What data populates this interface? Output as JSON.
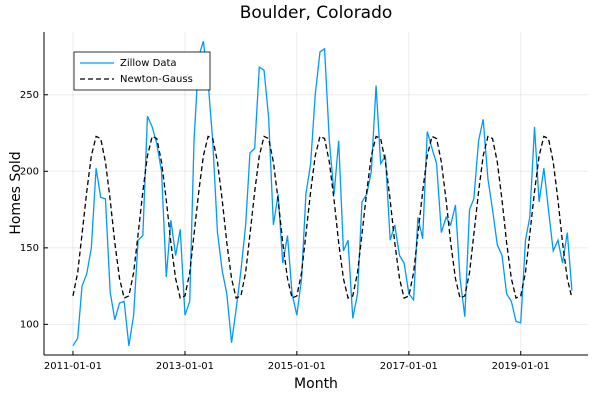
{
  "chart_data": {
    "type": "line",
    "title": "Boulder, Colorado",
    "x_label": "Month",
    "y_label": "Homes Sold",
    "x": [
      "2011-01-01",
      "2011-02-01",
      "2011-03-01",
      "2011-04-01",
      "2011-05-01",
      "2011-06-01",
      "2011-07-01",
      "2011-08-01",
      "2011-09-01",
      "2011-10-01",
      "2011-11-01",
      "2011-12-01",
      "2012-01-01",
      "2012-02-01",
      "2012-03-01",
      "2012-04-01",
      "2012-05-01",
      "2012-06-01",
      "2012-07-01",
      "2012-08-01",
      "2012-09-01",
      "2012-10-01",
      "2012-11-01",
      "2012-12-01",
      "2013-01-01",
      "2013-02-01",
      "2013-03-01",
      "2013-04-01",
      "2013-05-01",
      "2013-06-01",
      "2013-07-01",
      "2013-08-01",
      "2013-09-01",
      "2013-10-01",
      "2013-11-01",
      "2013-12-01",
      "2014-01-01",
      "2014-02-01",
      "2014-03-01",
      "2014-04-01",
      "2014-05-01",
      "2014-06-01",
      "2014-07-01",
      "2014-08-01",
      "2014-09-01",
      "2014-10-01",
      "2014-11-01",
      "2014-12-01",
      "2015-01-01",
      "2015-02-01",
      "2015-03-01",
      "2015-04-01",
      "2015-05-01",
      "2015-06-01",
      "2015-07-01",
      "2015-08-01",
      "2015-09-01",
      "2015-10-01",
      "2015-11-01",
      "2015-12-01",
      "2016-01-01",
      "2016-02-01",
      "2016-03-01",
      "2016-04-01",
      "2016-05-01",
      "2016-06-01",
      "2016-07-01",
      "2016-08-01",
      "2016-09-01",
      "2016-10-01",
      "2016-11-01",
      "2016-12-01",
      "2017-01-01",
      "2017-02-01",
      "2017-03-01",
      "2017-04-01",
      "2017-05-01",
      "2017-06-01",
      "2017-07-01",
      "2017-08-01",
      "2017-09-01",
      "2017-10-01",
      "2017-11-01",
      "2017-12-01",
      "2018-01-01",
      "2018-02-01",
      "2018-03-01",
      "2018-04-01",
      "2018-05-01",
      "2018-06-01",
      "2018-07-01",
      "2018-08-01",
      "2018-09-01",
      "2018-10-01",
      "2018-11-01",
      "2018-12-01",
      "2019-01-01",
      "2019-02-01",
      "2019-03-01",
      "2019-04-01",
      "2019-05-01",
      "2019-06-01",
      "2019-07-01",
      "2019-08-01",
      "2019-09-01",
      "2019-10-01",
      "2019-11-01",
      "2019-12-01"
    ],
    "series": [
      {
        "name": "Zillow Data",
        "color": "#009af9",
        "dash": false,
        "values": [
          86,
          91,
          125,
          133,
          150,
          202,
          183,
          182,
          121,
          103,
          114,
          115,
          86,
          106,
          155,
          158,
          236,
          229,
          218,
          200,
          131,
          168,
          145,
          162,
          106,
          115,
          220,
          275,
          285,
          258,
          220,
          160,
          135,
          120,
          88,
          110,
          135,
          165,
          212,
          215,
          268,
          266,
          235,
          165,
          185,
          140,
          158,
          120,
          106,
          130,
          185,
          205,
          250,
          278,
          280,
          220,
          185,
          220,
          148,
          155,
          104,
          120,
          180,
          185,
          200,
          256,
          205,
          210,
          155,
          165,
          145,
          140,
          120,
          116,
          170,
          156,
          226,
          215,
          205,
          160,
          170,
          165,
          178,
          130,
          105,
          175,
          182,
          220,
          234,
          195,
          175,
          152,
          145,
          120,
          115,
          102,
          101,
          155,
          170,
          229,
          180,
          202,
          175,
          148,
          155,
          140,
          160,
          122
        ]
      },
      {
        "name": "Newton-Gauss",
        "color": "#000000",
        "dash": true,
        "values": [
          118.6,
          133.9,
          158.8,
          186.7,
          210.1,
          222.8,
          221.4,
          206.1,
          181.2,
          153.3,
          129.9,
          117.2,
          118.6,
          133.9,
          158.8,
          186.7,
          210.1,
          222.8,
          221.4,
          206.1,
          181.2,
          153.3,
          129.9,
          117.2,
          118.6,
          133.9,
          158.8,
          186.7,
          210.1,
          222.8,
          221.4,
          206.1,
          181.2,
          153.3,
          129.9,
          117.2,
          118.6,
          133.9,
          158.8,
          186.7,
          210.1,
          222.8,
          221.4,
          206.1,
          181.2,
          153.3,
          129.9,
          117.2,
          118.6,
          133.9,
          158.8,
          186.7,
          210.1,
          222.8,
          221.4,
          206.1,
          181.2,
          153.3,
          129.9,
          117.2,
          118.6,
          133.9,
          158.8,
          186.7,
          210.1,
          222.8,
          221.4,
          206.1,
          181.2,
          153.3,
          129.9,
          117.2,
          118.6,
          133.9,
          158.8,
          186.7,
          210.1,
          222.8,
          221.4,
          206.1,
          181.2,
          153.3,
          129.9,
          117.2,
          118.6,
          133.9,
          158.8,
          186.7,
          210.1,
          222.8,
          221.4,
          206.1,
          181.2,
          153.3,
          129.9,
          117.2,
          118.6,
          133.9,
          158.8,
          186.7,
          210.1,
          222.8,
          221.4,
          206.1,
          181.2,
          153.3,
          129.9,
          117.2
        ]
      }
    ],
    "xlim": [
      "2010-06-26",
      "2020-03-15"
    ],
    "xticks": [
      "2011-01-01",
      "2013-01-01",
      "2015-01-01",
      "2017-01-01",
      "2019-01-01"
    ],
    "ylim": [
      80,
      291
    ],
    "yticks": [
      100,
      150,
      200,
      250
    ],
    "grid": true,
    "legend": "top-left"
  }
}
